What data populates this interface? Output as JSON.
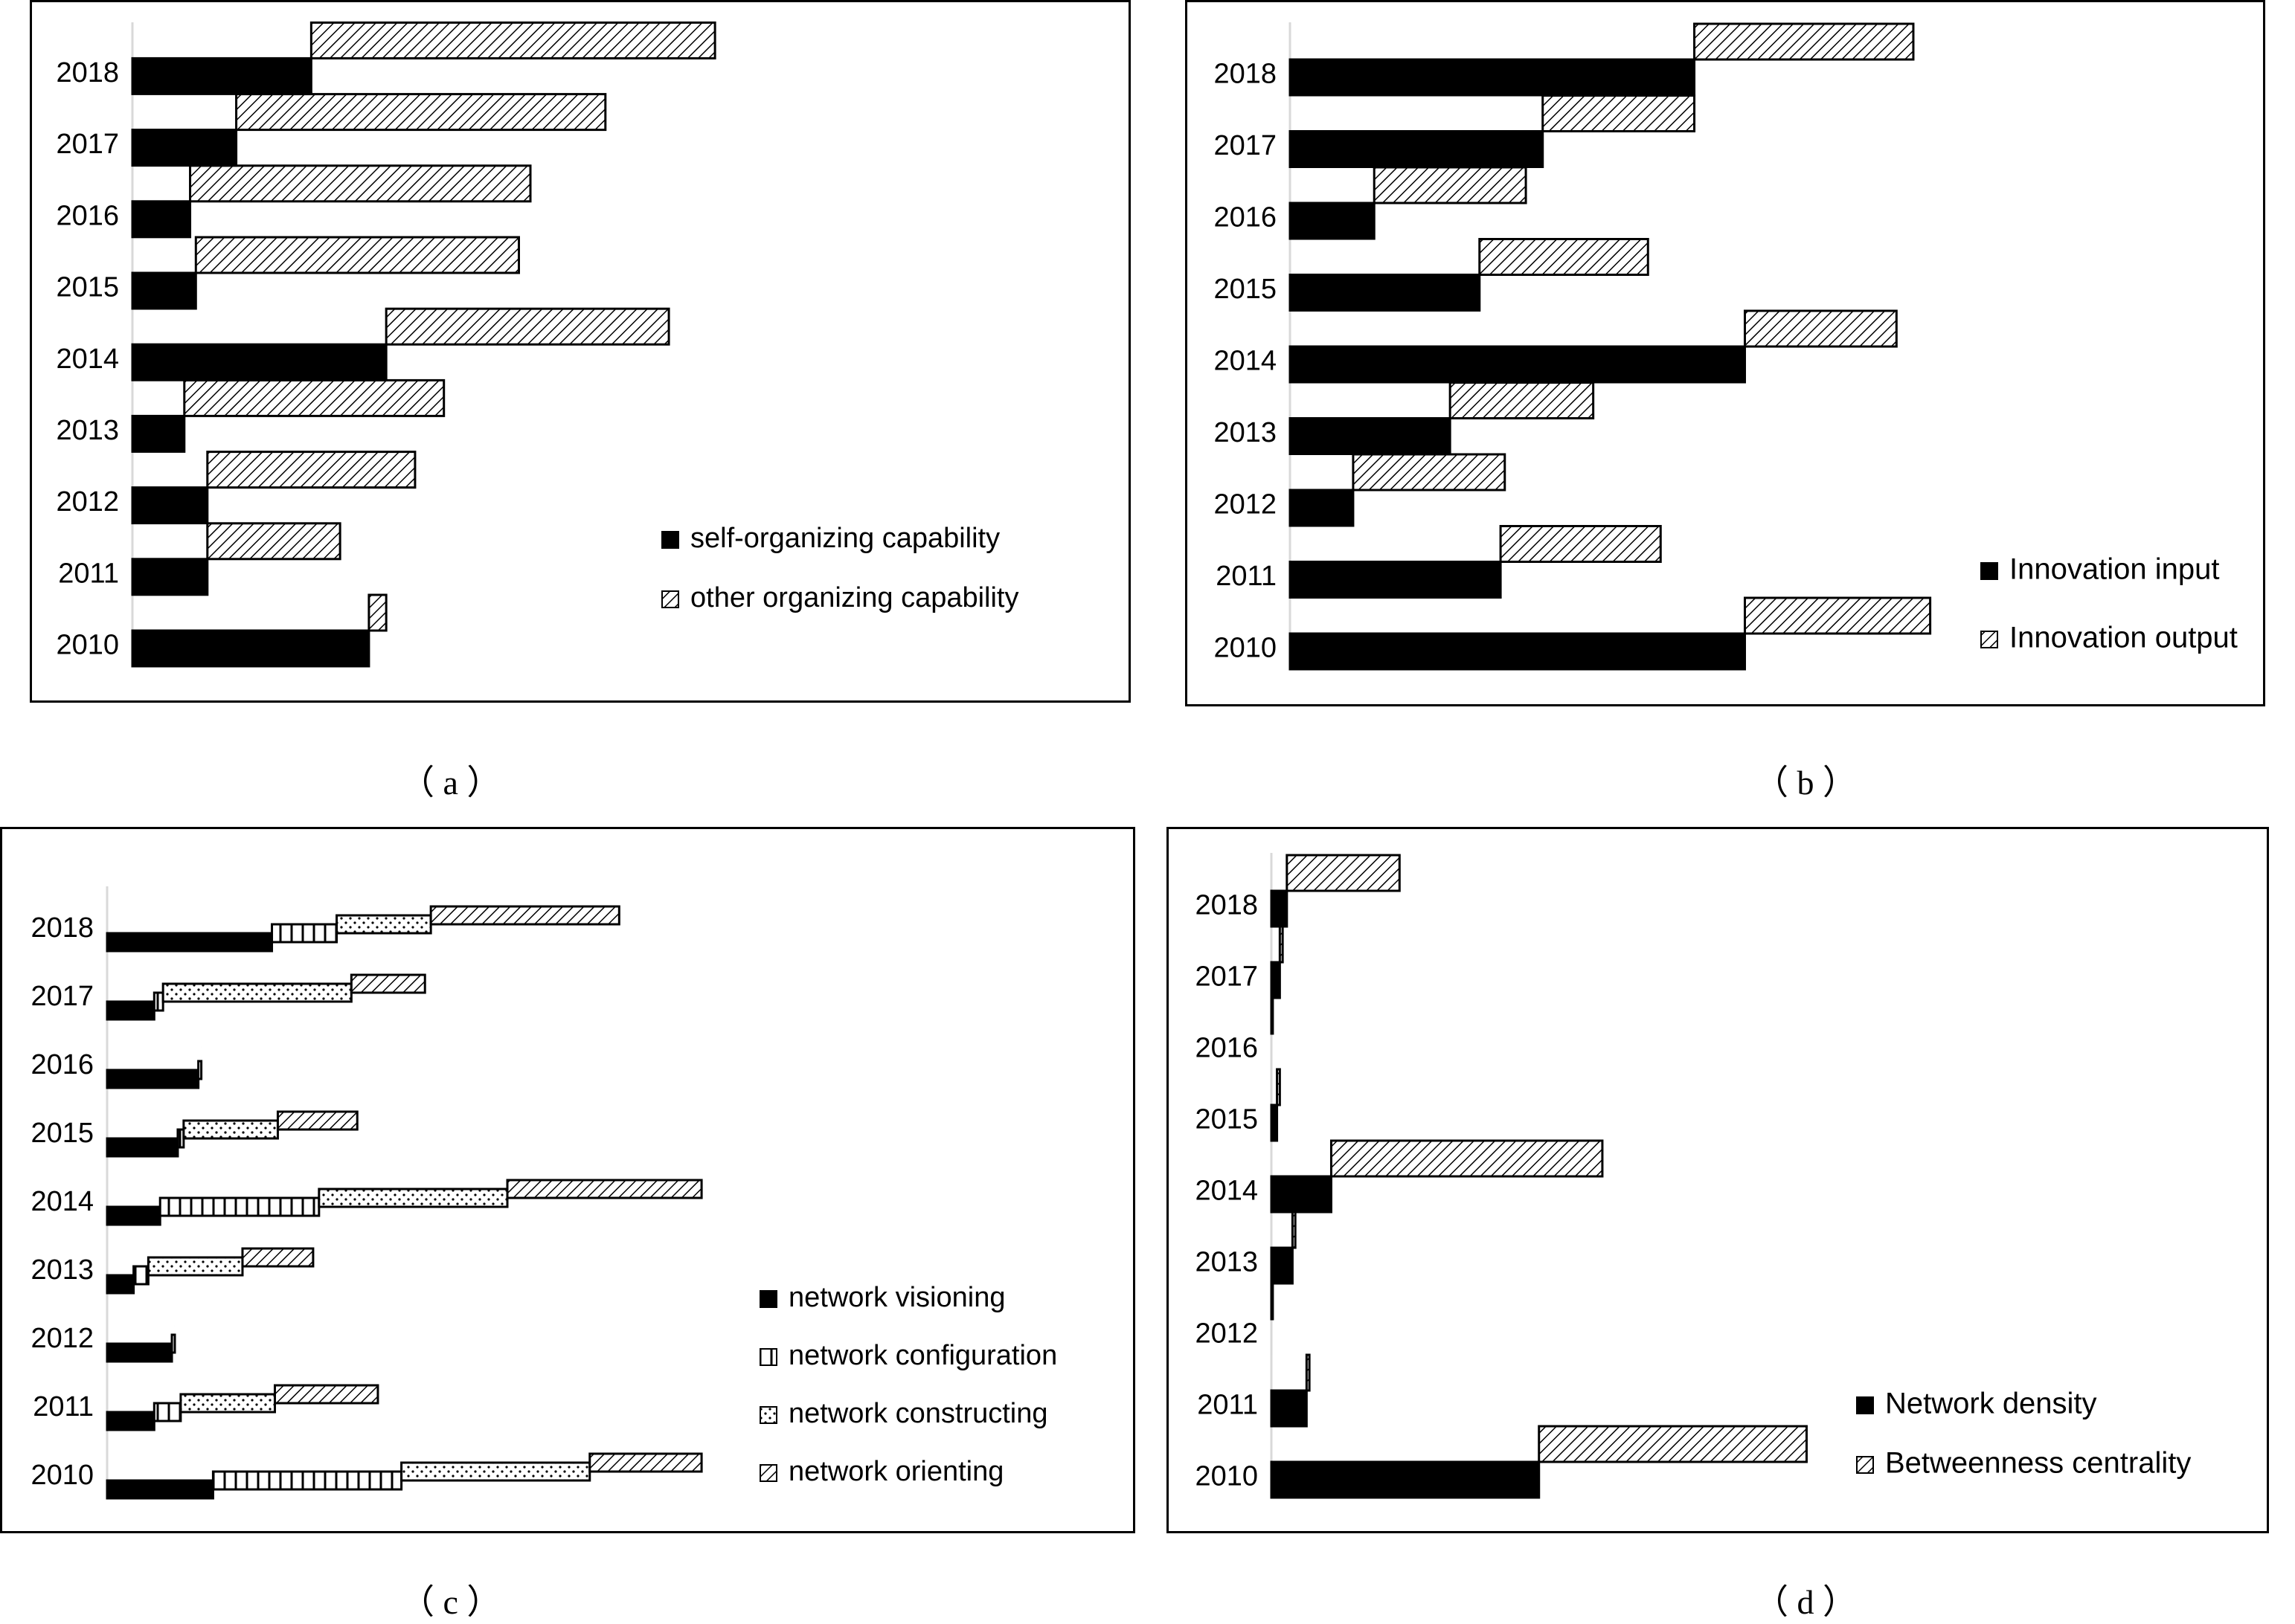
{
  "captions": {
    "a": "（ a ）",
    "b": "（ b ）",
    "c": "（ c ）",
    "d": "（ d ）"
  },
  "chart_data": [
    {
      "id": "a",
      "type": "bar",
      "stacked": true,
      "orientation": "horizontal",
      "categories": [
        "2010",
        "2011",
        "2012",
        "2013",
        "2014",
        "2015",
        "2016",
        "2017",
        "2018"
      ],
      "series": [
        {
          "name": "self-organizing capability",
          "pattern": "solid",
          "values": [
            0.41,
            0.13,
            0.13,
            0.09,
            0.44,
            0.11,
            0.1,
            0.18,
            0.31
          ]
        },
        {
          "name": "other organizing capability",
          "pattern": "hatch",
          "values": [
            0.03,
            0.23,
            0.36,
            0.45,
            0.49,
            0.56,
            0.59,
            0.64,
            0.7
          ]
        }
      ],
      "xlim": [
        0,
        1.38
      ],
      "legend": "bottom-right",
      "grid": false
    },
    {
      "id": "b",
      "type": "bar",
      "stacked": true,
      "orientation": "horizontal",
      "categories": [
        "2010",
        "2011",
        "2012",
        "2013",
        "2014",
        "2015",
        "2016",
        "2017",
        "2018"
      ],
      "series": [
        {
          "name": "Innovation input",
          "pattern": "solid",
          "values": [
            0.54,
            0.25,
            0.075,
            0.19,
            0.54,
            0.225,
            0.1,
            0.3,
            0.48
          ]
        },
        {
          "name": "Innovation output",
          "pattern": "hatch",
          "values": [
            0.22,
            0.19,
            0.18,
            0.17,
            0.18,
            0.2,
            0.18,
            0.18,
            0.26
          ]
        }
      ],
      "xlim": [
        0,
        1.05
      ],
      "legend": "bottom-right",
      "grid": false
    },
    {
      "id": "c",
      "type": "bar",
      "stacked": true,
      "orientation": "horizontal",
      "categories": [
        "2010",
        "2011",
        "2012",
        "2013",
        "2014",
        "2015",
        "2016",
        "2017",
        "2018"
      ],
      "series": [
        {
          "name": "network visioning",
          "pattern": "solid",
          "values": [
            0.18,
            0.08,
            0.11,
            0.045,
            0.09,
            0.12,
            0.155,
            0.08,
            0.28
          ]
        },
        {
          "name": "network configuration",
          "pattern": "vlines",
          "values": [
            0.32,
            0.045,
            0.005,
            0.025,
            0.27,
            0.01,
            0.005,
            0.015,
            0.11
          ]
        },
        {
          "name": "network constructing",
          "pattern": "dots",
          "values": [
            0.32,
            0.16,
            0.0,
            0.16,
            0.32,
            0.16,
            0.0,
            0.32,
            0.16
          ]
        },
        {
          "name": "network orienting",
          "pattern": "hatch",
          "values": [
            0.19,
            0.175,
            0.0,
            0.12,
            0.33,
            0.135,
            0.0,
            0.125,
            0.32
          ]
        }
      ],
      "xlim": [
        0,
        1.7
      ],
      "legend": "bottom-right",
      "grid": false
    },
    {
      "id": "d",
      "type": "bar",
      "stacked": true,
      "orientation": "horizontal",
      "categories": [
        "2010",
        "2011",
        "2012",
        "2013",
        "2014",
        "2015",
        "2016",
        "2017",
        "2018"
      ],
      "series": [
        {
          "name": "Network density",
          "pattern": "solid",
          "values": [
            0.38,
            0.05,
            0.0,
            0.03,
            0.085,
            0.008,
            0.0,
            0.012,
            0.022
          ]
        },
        {
          "name": "Betweenness centrality",
          "pattern": "hatch",
          "values": [
            0.38,
            0.004,
            0.002,
            0.004,
            0.385,
            0.004,
            0.002,
            0.004,
            0.16
          ]
        }
      ],
      "xlim": [
        0,
        1.2
      ],
      "legend": "bottom-right",
      "grid": false
    }
  ]
}
